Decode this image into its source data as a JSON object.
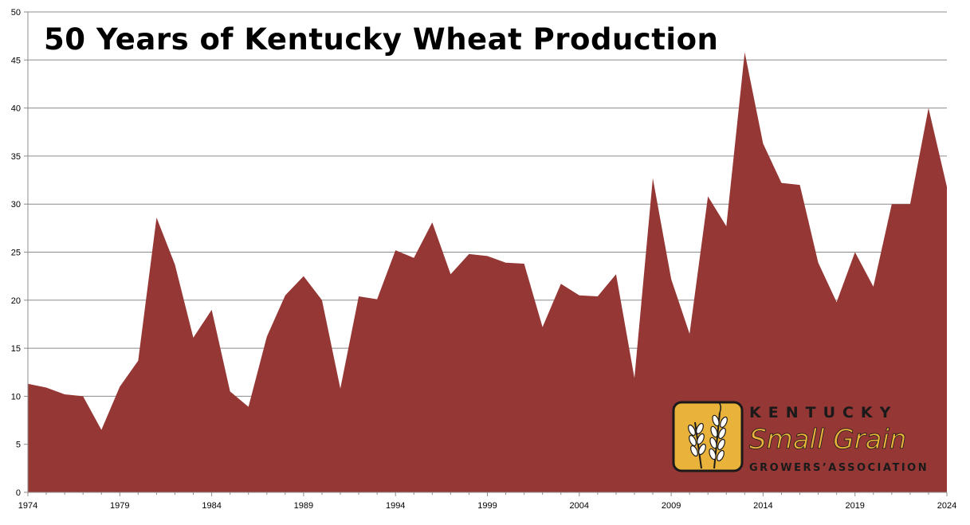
{
  "chart_data": {
    "type": "area",
    "title": "50 Years of Kentucky Wheat Production",
    "xlabel": "",
    "ylabel": "",
    "grid": true,
    "xlim": [
      1974,
      2024
    ],
    "ylim": [
      0,
      50
    ],
    "yticks": [
      0,
      5,
      10,
      15,
      20,
      25,
      30,
      35,
      40,
      45,
      50
    ],
    "xticks": [
      1974,
      1979,
      1984,
      1989,
      1994,
      1999,
      2004,
      2009,
      2014,
      2019,
      2024
    ],
    "color": "#953735",
    "x": [
      1974,
      1975,
      1976,
      1977,
      1978,
      1979,
      1980,
      1981,
      1982,
      1983,
      1984,
      1985,
      1986,
      1987,
      1988,
      1989,
      1990,
      1991,
      1992,
      1993,
      1994,
      1995,
      1996,
      1997,
      1998,
      1999,
      2000,
      2001,
      2002,
      2003,
      2004,
      2005,
      2006,
      2007,
      2008,
      2009,
      2010,
      2011,
      2012,
      2013,
      2014,
      2015,
      2016,
      2017,
      2018,
      2019,
      2020,
      2021,
      2022,
      2023,
      2024
    ],
    "values": [
      11.3,
      10.9,
      10.2,
      10.0,
      6.5,
      11.0,
      13.7,
      28.6,
      23.7,
      16.1,
      19.0,
      10.5,
      8.9,
      16.2,
      20.5,
      22.5,
      20.0,
      10.8,
      20.4,
      20.1,
      25.2,
      24.4,
      28.1,
      22.7,
      24.8,
      24.6,
      23.9,
      23.8,
      17.2,
      21.7,
      20.5,
      20.4,
      22.7,
      11.9,
      32.7,
      22.2,
      16.5,
      30.8,
      27.7,
      45.8,
      36.3,
      32.2,
      32.0,
      23.9,
      19.8,
      25.0,
      21.4,
      30.0,
      30.0,
      40.0,
      31.8
    ]
  },
  "logo": {
    "line1": "KENTUCKY",
    "line2": "Small Grain",
    "line3": "GROWERS’ASSOCIATION",
    "badge_color": "#e9b23a",
    "text_color": "#1a1a1a"
  }
}
